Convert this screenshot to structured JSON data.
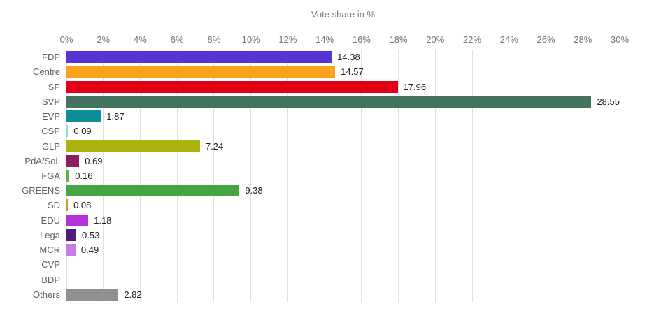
{
  "chart_data": {
    "type": "bar",
    "orientation": "horizontal",
    "title": "Vote share in %",
    "xlabel": "Vote share in %",
    "ylabel": "",
    "xlim": [
      0,
      30
    ],
    "grid": "vertical",
    "legend": "none",
    "x_ticks": [
      "0%",
      "2%",
      "4%",
      "6%",
      "8%",
      "10%",
      "12%",
      "14%",
      "16%",
      "18%",
      "20%",
      "22%",
      "24%",
      "26%",
      "28%",
      "30%"
    ],
    "categories": [
      "FDP",
      "Centre",
      "SP",
      "SVP",
      "EVP",
      "CSP",
      "GLP",
      "PdA/Sol.",
      "FGA",
      "GREENS",
      "SD",
      "EDU",
      "Lega",
      "MCR",
      "CVP",
      "BDP",
      "Others"
    ],
    "values": [
      14.38,
      14.57,
      17.96,
      28.55,
      1.87,
      0.09,
      7.24,
      0.69,
      0.16,
      9.38,
      0.08,
      1.18,
      0.53,
      0.49,
      null,
      null,
      2.82
    ],
    "labels": [
      "14.38",
      "14.57",
      "17.96",
      "28.55",
      "1.87",
      "0.09",
      "7.24",
      "0.69",
      "0.16",
      "9.38",
      "0.08",
      "1.18",
      "0.53",
      "0.49",
      "",
      "",
      "2.82"
    ],
    "colors": [
      "#5833d6",
      "#faa21e",
      "#e20017",
      "#43725e",
      "#0f8e99",
      "#8fd8e8",
      "#a9b50e",
      "#8c1d63",
      "#5cb442",
      "#45a545",
      "#cfa01f",
      "#b234d8",
      "#521b80",
      "#c77de6",
      "#cccccc",
      "#cccccc",
      "#909090"
    ],
    "text_colors": {
      "title": "#757575",
      "axis_ticks": "#757575",
      "category_labels": "#616161",
      "value_labels": "#212121",
      "gridline": "#e1e1e1"
    }
  }
}
